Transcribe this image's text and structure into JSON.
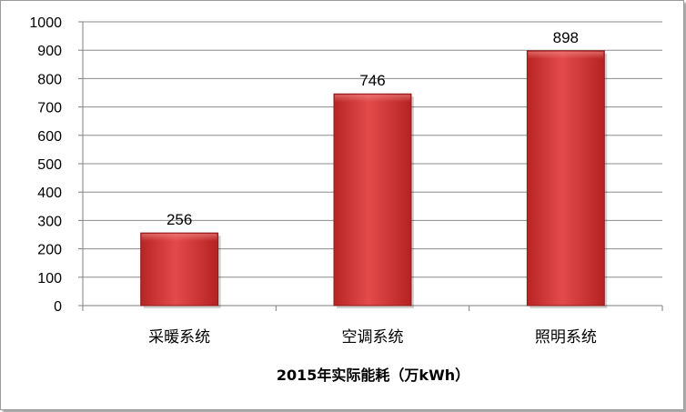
{
  "chart_data": {
    "type": "bar",
    "title": "",
    "xlabel": "2015年实际能耗（万kWh）",
    "ylabel": "",
    "categories": [
      "采暖系统",
      "空调系统",
      "照明系统"
    ],
    "values": [
      256,
      746,
      898
    ],
    "ylim": [
      0,
      1000
    ],
    "yticks": [
      0,
      100,
      200,
      300,
      400,
      500,
      600,
      700,
      800,
      900,
      1000
    ],
    "grid": true,
    "legend": "none",
    "bar_color": "#d63a3a",
    "data_labels": true
  }
}
